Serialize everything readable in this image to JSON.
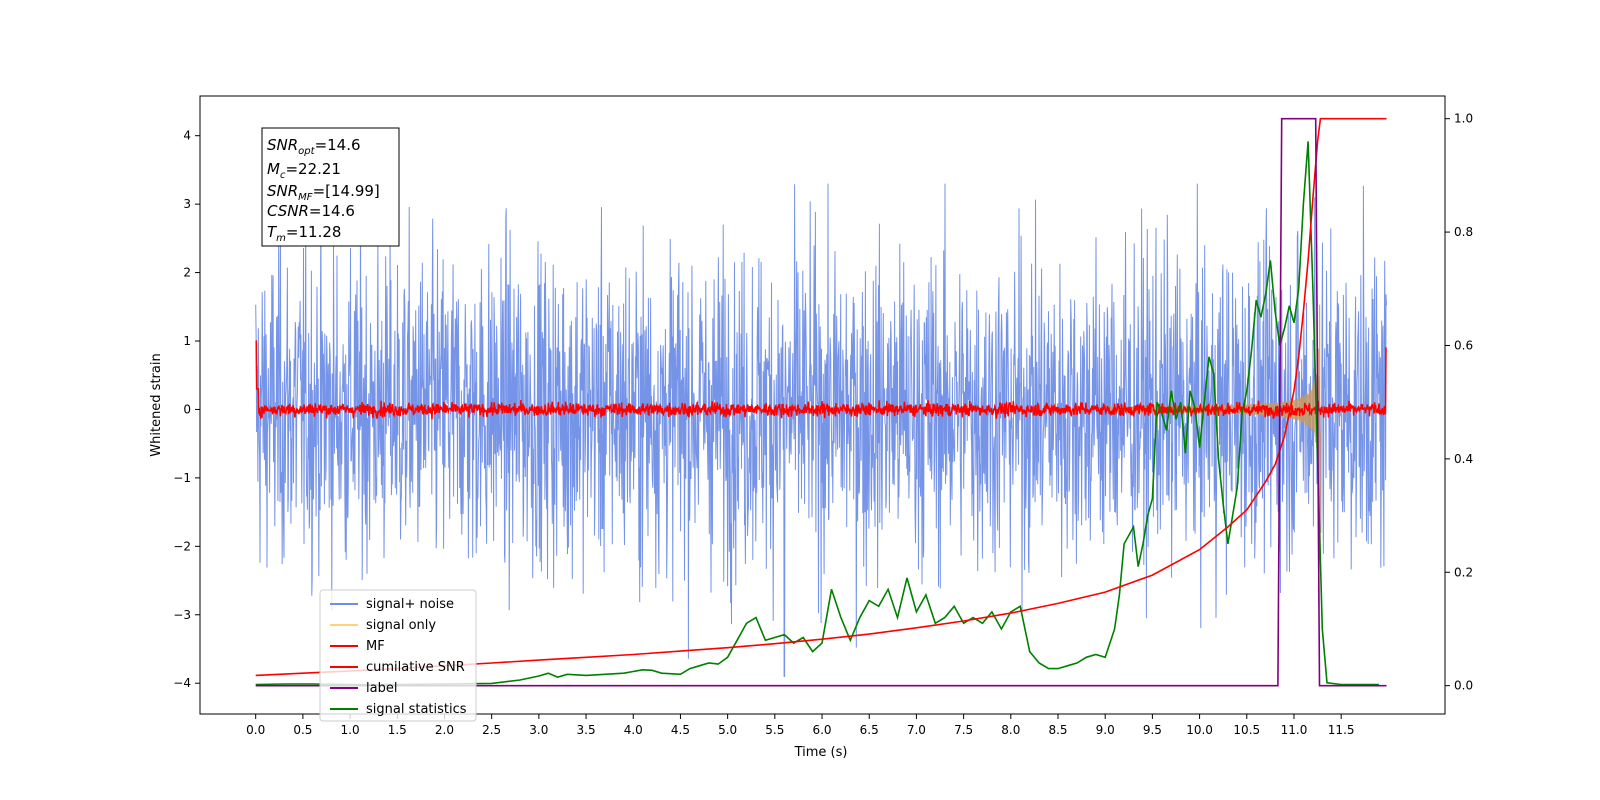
{
  "chart_data": {
    "type": "line",
    "xlabel": "Time (s)",
    "ylabel": "Whitened strain",
    "xlim": [
      -0.59,
      12.6
    ],
    "ylim_left": [
      -4.45,
      4.58
    ],
    "ylim_right": [
      -0.05,
      1.04
    ],
    "x_ticks": [
      "0.0",
      "0.5",
      "1.0",
      "1.5",
      "2.0",
      "2.5",
      "3.0",
      "3.5",
      "4.0",
      "4.5",
      "5.0",
      "5.5",
      "6.0",
      "6.5",
      "7.0",
      "7.5",
      "8.0",
      "8.5",
      "9.0",
      "9.5",
      "10.0",
      "10.5",
      "11.0",
      "11.5"
    ],
    "y_left_ticks": [
      "4",
      "3",
      "2",
      "1",
      "0",
      "−1",
      "−2",
      "−3",
      "−4"
    ],
    "y_right_ticks": [
      "1.0",
      "0.8",
      "0.6",
      "0.4",
      "0.2",
      "0.0"
    ],
    "info_box": {
      "snr_opt": {
        "sym": "SNR",
        "sub": "opt",
        "value": "=14.6"
      },
      "mc": {
        "sym": "M",
        "sub": "c",
        "value": "=22.21"
      },
      "snr_mf": {
        "sym": "SNR",
        "sub": "MF",
        "value": "=[14.99]"
      },
      "csnr": {
        "sym": "CSNR",
        "sub": "",
        "value": "=14.6"
      },
      "tm": {
        "sym": "T",
        "sub": "m",
        "value": "=11.28"
      }
    },
    "legend": {
      "placement": "lower-left",
      "entries": [
        {
          "label": "signal+ noise",
          "color": "#6f8ee6"
        },
        {
          "label": "signal only",
          "color": "#ffd37a"
        },
        {
          "label": "MF",
          "color": "#ff0000"
        },
        {
          "label": "cumilative SNR",
          "color": "#ff0000"
        },
        {
          "label": "label",
          "color": "#800080"
        },
        {
          "label": "signal statistics",
          "color": "#008000"
        }
      ]
    },
    "series": [
      {
        "name": "signal statistics",
        "axis": "right",
        "color": "#008000",
        "x": [
          0.0,
          0.3,
          0.6,
          1.0,
          1.5,
          2.0,
          2.5,
          2.8,
          3.0,
          3.1,
          3.2,
          3.3,
          3.5,
          3.7,
          3.9,
          4.0,
          4.1,
          4.2,
          4.3,
          4.5,
          4.6,
          4.7,
          4.8,
          4.9,
          5.0,
          5.1,
          5.2,
          5.3,
          5.4,
          5.5,
          5.6,
          5.7,
          5.8,
          5.9,
          6.0,
          6.1,
          6.2,
          6.3,
          6.4,
          6.5,
          6.6,
          6.7,
          6.8,
          6.9,
          7.0,
          7.1,
          7.2,
          7.3,
          7.4,
          7.5,
          7.6,
          7.7,
          7.8,
          7.9,
          8.0,
          8.1,
          8.2,
          8.3,
          8.4,
          8.5,
          8.6,
          8.7,
          8.8,
          8.9,
          9.0,
          9.1,
          9.15,
          9.2,
          9.3,
          9.35,
          9.4,
          9.45,
          9.5,
          9.55,
          9.6,
          9.65,
          9.7,
          9.75,
          9.8,
          9.85,
          9.9,
          9.95,
          10.0,
          10.05,
          10.1,
          10.15,
          10.2,
          10.25,
          10.3,
          10.35,
          10.4,
          10.45,
          10.5,
          10.55,
          10.6,
          10.65,
          10.7,
          10.75,
          10.8,
          10.85,
          10.9,
          10.95,
          11.0,
          11.05,
          11.1,
          11.15,
          11.2,
          11.25,
          11.3,
          11.35,
          11.5,
          11.7,
          11.9
        ],
        "values": [
          0.002,
          0.003,
          0.003,
          0.002,
          0.002,
          0.003,
          0.004,
          0.01,
          0.017,
          0.022,
          0.015,
          0.02,
          0.018,
          0.02,
          0.022,
          0.025,
          0.028,
          0.027,
          0.022,
          0.02,
          0.03,
          0.035,
          0.04,
          0.038,
          0.05,
          0.08,
          0.11,
          0.12,
          0.08,
          0.085,
          0.09,
          0.075,
          0.085,
          0.06,
          0.075,
          0.17,
          0.12,
          0.08,
          0.12,
          0.15,
          0.14,
          0.17,
          0.12,
          0.19,
          0.13,
          0.16,
          0.11,
          0.12,
          0.14,
          0.11,
          0.12,
          0.11,
          0.13,
          0.1,
          0.13,
          0.14,
          0.06,
          0.04,
          0.03,
          0.03,
          0.035,
          0.04,
          0.05,
          0.055,
          0.05,
          0.1,
          0.16,
          0.25,
          0.28,
          0.21,
          0.25,
          0.3,
          0.33,
          0.5,
          0.48,
          0.45,
          0.52,
          0.47,
          0.5,
          0.41,
          0.52,
          0.49,
          0.42,
          0.5,
          0.58,
          0.55,
          0.4,
          0.32,
          0.25,
          0.3,
          0.35,
          0.48,
          0.52,
          0.59,
          0.68,
          0.65,
          0.69,
          0.75,
          0.66,
          0.6,
          0.63,
          0.67,
          0.64,
          0.7,
          0.85,
          0.96,
          0.7,
          0.4,
          0.1,
          0.005,
          0.002,
          0.002,
          0.002
        ]
      },
      {
        "name": "cumilative SNR",
        "axis": "right",
        "color": "#ff0000",
        "x": [
          0.0,
          0.5,
          1.0,
          1.5,
          2.0,
          2.5,
          3.0,
          3.5,
          4.0,
          4.5,
          5.0,
          5.5,
          6.0,
          6.5,
          7.0,
          7.5,
          8.0,
          8.5,
          9.0,
          9.5,
          10.0,
          10.3,
          10.5,
          10.7,
          10.8,
          10.9,
          11.0,
          11.05,
          11.1,
          11.15,
          11.2,
          11.25,
          11.28,
          11.3,
          11.5,
          11.8,
          11.98
        ],
        "values": [
          0.018,
          0.022,
          0.026,
          0.03,
          0.035,
          0.04,
          0.045,
          0.05,
          0.055,
          0.061,
          0.067,
          0.074,
          0.082,
          0.091,
          0.102,
          0.114,
          0.128,
          0.145,
          0.165,
          0.195,
          0.24,
          0.28,
          0.31,
          0.36,
          0.39,
          0.44,
          0.52,
          0.58,
          0.66,
          0.75,
          0.86,
          0.96,
          1.0,
          1.0,
          1.0,
          1.0,
          1.0
        ]
      },
      {
        "name": "label",
        "axis": "right",
        "color": "#800080",
        "x": [
          0.0,
          10.83,
          10.87,
          11.23,
          11.27,
          11.98
        ],
        "values": [
          0.0,
          0.0,
          1.0,
          1.0,
          0.0,
          0.0
        ]
      }
    ]
  }
}
